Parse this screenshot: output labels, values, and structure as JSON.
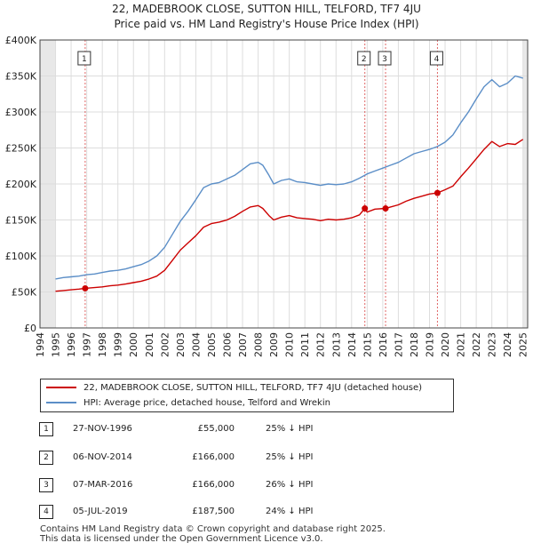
{
  "title": {
    "line1": "22, MADEBROOK CLOSE, SUTTON HILL, TELFORD, TF7 4JU",
    "line2": "Price paid vs. HM Land Registry's House Price Index (HPI)"
  },
  "legend": {
    "property_label": "22, MADEBROOK CLOSE, SUTTON HILL, TELFORD, TF7 4JU (detached house)",
    "hpi_label": "HPI: Average price, detached house, Telford and Wrekin",
    "property_color": "#cc0000",
    "hpi_color": "#5b8ec7"
  },
  "transactions": [
    {
      "num": "1",
      "date": "27-NOV-1996",
      "price": "£55,000",
      "hpi": "25% ↓ HPI"
    },
    {
      "num": "2",
      "date": "06-NOV-2014",
      "price": "£166,000",
      "hpi": "25% ↓ HPI"
    },
    {
      "num": "3",
      "date": "07-MAR-2016",
      "price": "£166,000",
      "hpi": "26% ↓ HPI"
    },
    {
      "num": "4",
      "date": "05-JUL-2019",
      "price": "£187,500",
      "hpi": "24% ↓ HPI"
    }
  ],
  "footer": {
    "line1": "Contains HM Land Registry data © Crown copyright and database right 2025.",
    "line2": "This data is licensed under the Open Government Licence v3.0."
  },
  "chart_data": {
    "type": "line",
    "title": "22, MADEBROOK CLOSE, SUTTON HILL, TELFORD, TF7 4JU",
    "subtitle": "Price paid vs. HM Land Registry's House Price Index (HPI)",
    "xlabel": "",
    "ylabel": "",
    "xlim": [
      1994,
      2025
    ],
    "ylim": [
      0,
      400000
    ],
    "x_ticks": [
      1994,
      1995,
      1996,
      1997,
      1998,
      1999,
      2000,
      2001,
      2002,
      2003,
      2004,
      2005,
      2006,
      2007,
      2008,
      2009,
      2010,
      2011,
      2012,
      2013,
      2014,
      2015,
      2016,
      2017,
      2018,
      2019,
      2020,
      2021,
      2022,
      2023,
      2024,
      2025
    ],
    "y_ticks": [
      {
        "value": 0,
        "label": "£0"
      },
      {
        "value": 50000,
        "label": "£50K"
      },
      {
        "value": 100000,
        "label": "£100K"
      },
      {
        "value": 150000,
        "label": "£150K"
      },
      {
        "value": 200000,
        "label": "£200K"
      },
      {
        "value": 250000,
        "label": "£250K"
      },
      {
        "value": 300000,
        "label": "£300K"
      },
      {
        "value": 350000,
        "label": "£350K"
      },
      {
        "value": 400000,
        "label": "£400K"
      }
    ],
    "grid": true,
    "shaded_ranges": [
      [
        1994,
        1995
      ],
      [
        2025,
        2025.3
      ]
    ],
    "series": [
      {
        "name": "HPI: Average price, detached house, Telford and Wrekin",
        "color": "#5b8ec7",
        "x": [
          1995,
          1995.5,
          1996,
          1996.5,
          1997,
          1997.5,
          1998,
          1998.5,
          1999,
          1999.5,
          2000,
          2000.5,
          2001,
          2001.5,
          2002,
          2002.5,
          2003,
          2003.5,
          2004,
          2004.5,
          2005,
          2005.5,
          2006,
          2006.5,
          2007,
          2007.5,
          2008,
          2008.3,
          2008.7,
          2009,
          2009.5,
          2010,
          2010.5,
          2011,
          2011.5,
          2012,
          2012.5,
          2013,
          2013.5,
          2014,
          2014.5,
          2015,
          2015.5,
          2016,
          2016.5,
          2017,
          2017.5,
          2018,
          2018.5,
          2019,
          2019.5,
          2020,
          2020.5,
          2021,
          2021.5,
          2022,
          2022.5,
          2023,
          2023.5,
          2024,
          2024.5,
          2025
        ],
        "values": [
          68000,
          70000,
          71000,
          72000,
          74000,
          75000,
          77000,
          79000,
          80000,
          82000,
          85000,
          88000,
          93000,
          100000,
          112000,
          130000,
          148000,
          162000,
          178000,
          195000,
          200000,
          202000,
          207000,
          212000,
          220000,
          228000,
          230000,
          226000,
          212000,
          200000,
          205000,
          207000,
          203000,
          202000,
          200000,
          198000,
          200000,
          199000,
          200000,
          203000,
          208000,
          214000,
          218000,
          222000,
          226000,
          230000,
          236000,
          242000,
          245000,
          248000,
          252000,
          258000,
          268000,
          285000,
          300000,
          318000,
          335000,
          345000,
          335000,
          340000,
          350000,
          347000
        ]
      },
      {
        "name": "22, MADEBROOK CLOSE, SUTTON HILL, TELFORD, TF7 4JU (detached house)",
        "color": "#cc0000",
        "x": [
          1995,
          1995.5,
          1996,
          1996.5,
          1996.9,
          1997.5,
          1998,
          1998.5,
          1999,
          1999.5,
          2000,
          2000.5,
          2001,
          2001.5,
          2002,
          2002.5,
          2003,
          2003.5,
          2004,
          2004.5,
          2005,
          2005.5,
          2006,
          2006.5,
          2007,
          2007.5,
          2008,
          2008.3,
          2008.7,
          2009,
          2009.5,
          2010,
          2010.5,
          2011,
          2011.5,
          2012,
          2012.5,
          2013,
          2013.5,
          2014,
          2014.5,
          2014.85,
          2015,
          2015.5,
          2016.18,
          2016.5,
          2017,
          2017.5,
          2018,
          2018.5,
          2019,
          2019.51,
          2020,
          2020.5,
          2021,
          2021.5,
          2022,
          2022.5,
          2023,
          2023.5,
          2024,
          2024.5,
          2025
        ],
        "values": [
          51000,
          52000,
          53000,
          54000,
          55000,
          56000,
          57000,
          58500,
          59500,
          61000,
          63000,
          65000,
          68000,
          72000,
          80000,
          94000,
          108000,
          118000,
          128000,
          140000,
          145000,
          147000,
          150000,
          155000,
          162000,
          168000,
          170000,
          166000,
          156000,
          150000,
          154000,
          156000,
          153000,
          152000,
          151000,
          149000,
          151000,
          150000,
          151000,
          153000,
          157000,
          166000,
          161000,
          165000,
          166000,
          168000,
          171000,
          176000,
          180000,
          183000,
          186000,
          187500,
          192000,
          197000,
          210000,
          222000,
          235000,
          248000,
          259000,
          252000,
          256000,
          255000,
          262000
        ]
      }
    ],
    "sales": [
      {
        "label": "1",
        "x": 1996.9,
        "value": 55000
      },
      {
        "label": "2",
        "x": 2014.85,
        "value": 166000
      },
      {
        "label": "3",
        "x": 2016.18,
        "value": 166000
      },
      {
        "label": "4",
        "x": 2019.51,
        "value": 187500
      }
    ]
  }
}
